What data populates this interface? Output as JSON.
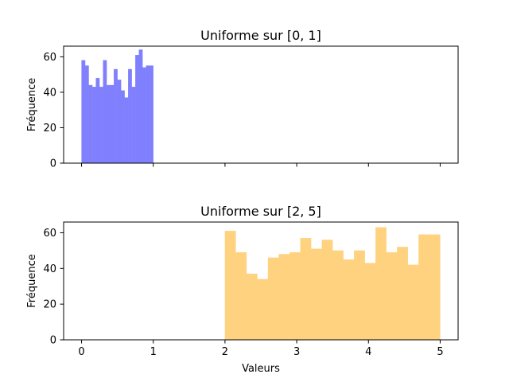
{
  "chart_data": [
    {
      "type": "bar",
      "title": "Uniforme sur [0, 1]",
      "xlabel": "",
      "ylabel": "Fréquence",
      "xlim": [
        -0.25,
        5.25
      ],
      "ylim": [
        0,
        66
      ],
      "xticks": [
        0,
        1,
        2,
        3,
        4,
        5
      ],
      "xtick_labels_visible": false,
      "yticks": [
        0,
        20,
        40,
        60
      ],
      "color": "#8080ff",
      "grid": false,
      "bins": {
        "start": 0,
        "end": 1,
        "count": 20
      },
      "values": [
        58,
        55,
        44,
        43,
        48,
        43,
        58,
        44,
        44,
        53,
        47,
        41,
        37,
        53,
        43,
        61,
        64,
        54,
        55,
        55
      ]
    },
    {
      "type": "bar",
      "title": "Uniforme sur [2, 5]",
      "xlabel": "Valeurs",
      "ylabel": "Fréquence",
      "xlim": [
        -0.25,
        5.25
      ],
      "ylim": [
        0,
        66
      ],
      "xticks": [
        0,
        1,
        2,
        3,
        4,
        5
      ],
      "xtick_labels_visible": true,
      "yticks": [
        0,
        20,
        40,
        60
      ],
      "color": "#ffd280",
      "grid": false,
      "bins": {
        "start": 2,
        "end": 5,
        "count": 20
      },
      "values": [
        61,
        49,
        37,
        34,
        46,
        48,
        49,
        57,
        51,
        56,
        50,
        45,
        50,
        43,
        63,
        49,
        52,
        42,
        59,
        59
      ]
    }
  ]
}
